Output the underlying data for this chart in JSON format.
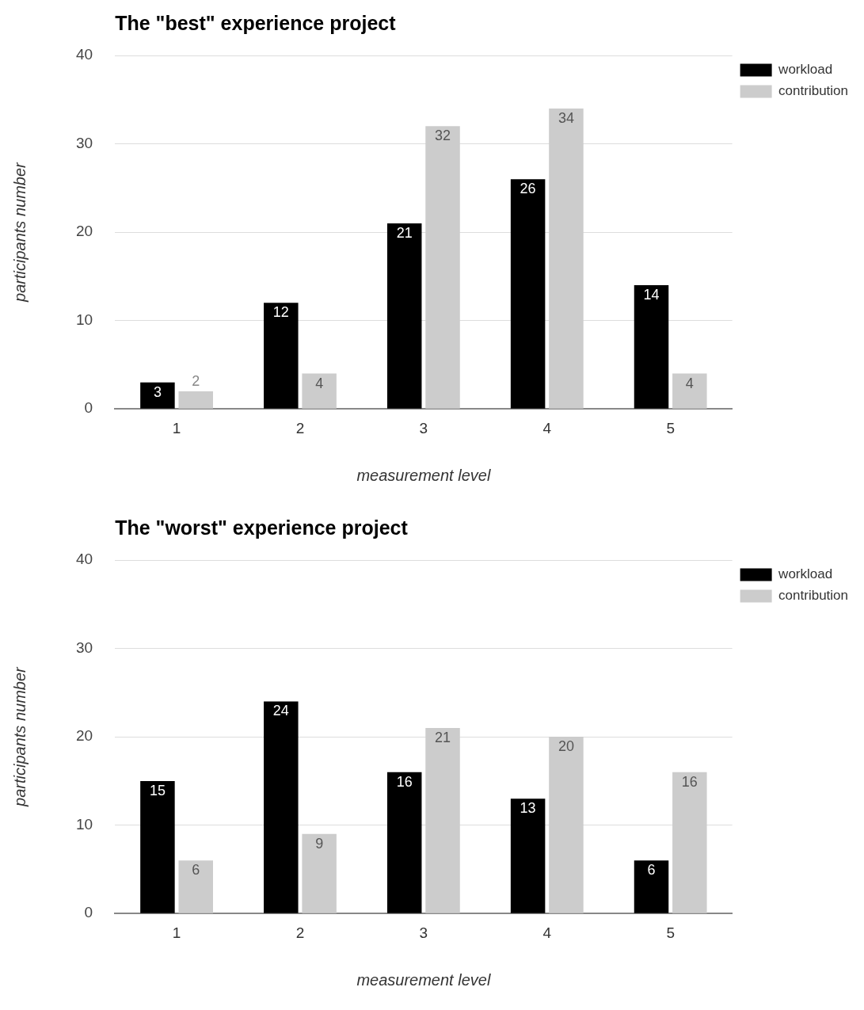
{
  "chart_data": [
    {
      "type": "bar",
      "title": "The \"best\" experience project",
      "xlabel": "measurement level",
      "ylabel": "participants number",
      "categories": [
        "1",
        "2",
        "3",
        "4",
        "5"
      ],
      "series": [
        {
          "name": "workload",
          "color": "#000000",
          "values": [
            3,
            12,
            21,
            26,
            14
          ]
        },
        {
          "name": "contribution",
          "color": "#cccccc",
          "values": [
            2,
            4,
            32,
            34,
            4
          ]
        }
      ],
      "ylim": [
        0,
        40
      ],
      "yticks": [
        0,
        10,
        20,
        30,
        40
      ],
      "grid": "y",
      "legend": "top right",
      "data_labels": true
    },
    {
      "type": "bar",
      "title": "The \"worst\" experience project",
      "xlabel": "measurement level",
      "ylabel": "participants number",
      "categories": [
        "1",
        "2",
        "3",
        "4",
        "5"
      ],
      "series": [
        {
          "name": "workload",
          "color": "#000000",
          "values": [
            15,
            24,
            16,
            13,
            6
          ]
        },
        {
          "name": "contribution",
          "color": "#cccccc",
          "values": [
            6,
            9,
            21,
            20,
            16
          ]
        }
      ],
      "ylim": [
        0,
        40
      ],
      "yticks": [
        0,
        10,
        20,
        30,
        40
      ],
      "grid": "y",
      "legend": "top right",
      "data_labels": true
    }
  ]
}
